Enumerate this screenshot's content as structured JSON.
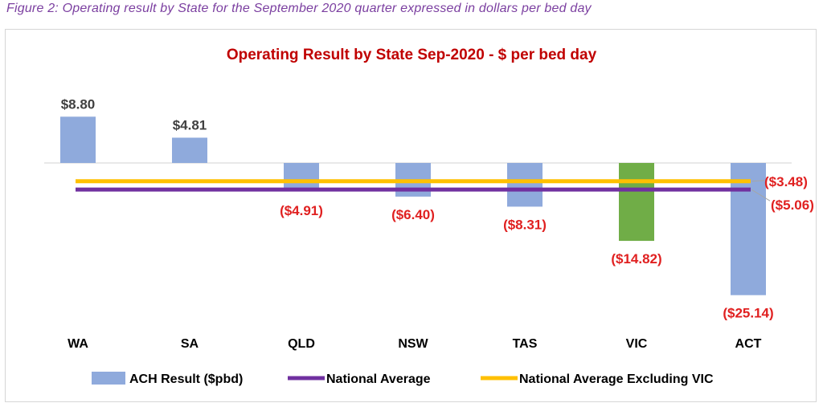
{
  "caption": "Figure 2: Operating result by State for the September 2020 quarter expressed in dollars per bed day",
  "chart_data": {
    "type": "bar",
    "title": "Operating Result by State Sep-2020 - $ per bed day",
    "categories": [
      "WA",
      "SA",
      "QLD",
      "NSW",
      "TAS",
      "VIC",
      "ACT"
    ],
    "series": [
      {
        "name": "ACH Result ($pbd)",
        "values": [
          8.8,
          4.81,
          -4.91,
          -6.4,
          -8.31,
          -14.82,
          -25.14
        ],
        "data_labels": [
          "$8.80",
          "$4.81",
          "($4.91)",
          "($6.40)",
          "($8.31)",
          "($14.82)",
          "($25.14)"
        ],
        "color": "#8faadc",
        "highlight": {
          "category": "VIC",
          "color": "#70ad47"
        }
      },
      {
        "name": "National Average",
        "type": "line",
        "value": -5.06,
        "data_label": "($5.06)",
        "color": "#7030a0"
      },
      {
        "name": "National Average Excluding VIC",
        "type": "line",
        "value": -3.48,
        "data_label": "($3.48)",
        "color": "#ffc000"
      }
    ],
    "ylim": [
      -28,
      10
    ],
    "grid": false,
    "legend_position": "bottom",
    "label_color_positive": "#404040",
    "label_color_negative": "#e02020"
  }
}
